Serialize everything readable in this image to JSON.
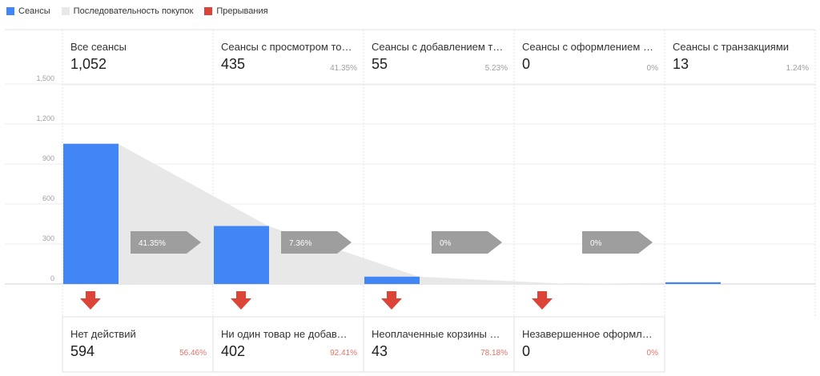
{
  "legend": [
    {
      "label": "Сеансы",
      "color": "#4285f4"
    },
    {
      "label": "Последовательность покупок",
      "color": "#e8e8e8"
    },
    {
      "label": "Прерывания",
      "color": "#db4437"
    }
  ],
  "stages": [
    {
      "label": "Все сеансы",
      "value": "1,052",
      "pct": ""
    },
    {
      "label": "Сеансы с просмотром товара",
      "value": "435",
      "pct": "41.35%"
    },
    {
      "label": "Сеансы с добавлением товара в корзину",
      "value": "55",
      "pct": "5.23%"
    },
    {
      "label": "Сеансы с оформлением покупки",
      "value": "0",
      "pct": "0%"
    },
    {
      "label": "Сеансы с транзакциями",
      "value": "13",
      "pct": "1.24%"
    }
  ],
  "abandonments": [
    {
      "label": "Нет действий",
      "value": "594",
      "pct": "56.46%"
    },
    {
      "label": "Ни один товар не добавлен в корзину",
      "value": "402",
      "pct": "92.41%"
    },
    {
      "label": "Неоплаченные корзины покупок",
      "value": "43",
      "pct": "78.18%"
    },
    {
      "label": "Незавершенное оформление покупки",
      "value": "0",
      "pct": "0%"
    }
  ],
  "chart_data": {
    "type": "bar",
    "categories": [
      "Все сеансы",
      "Сеансы с просмотром товара",
      "Сеансы с добавлением товара в корзину",
      "Сеансы с оформлением покупки",
      "Сеансы с транзакциями"
    ],
    "values": [
      1052,
      435,
      55,
      0,
      13
    ],
    "conversion_rates": [
      "41.35%",
      "7.36%",
      "0%",
      "0%"
    ],
    "ylim": [
      0,
      1500
    ],
    "yticks": [
      0,
      300,
      600,
      900,
      1200,
      1500
    ],
    "ytick_labels": [
      "0",
      "300",
      "600",
      "900",
      "1,200",
      "1,500"
    ],
    "grid": true,
    "legend_position": "top-left",
    "colors": {
      "bars": "#4285f4",
      "flow": "#e8e8e8",
      "arrow": "#9e9e9e",
      "abandon": "#db4437"
    }
  }
}
